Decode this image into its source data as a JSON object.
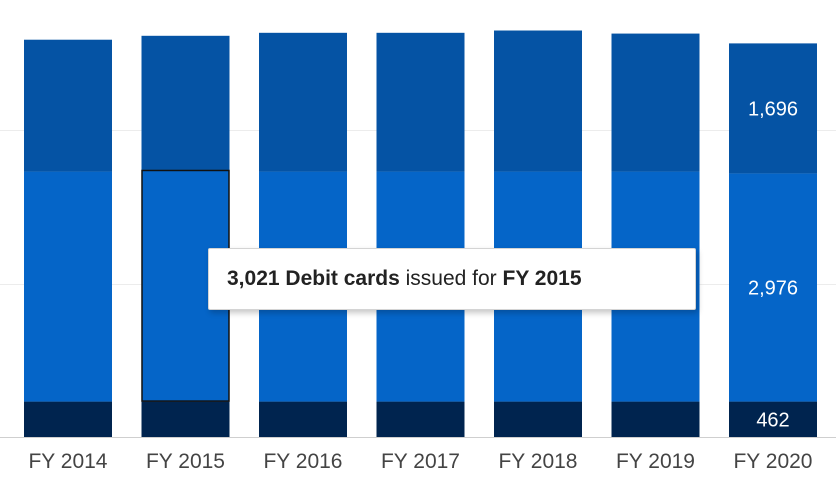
{
  "chart_data": {
    "type": "bar",
    "stacked": true,
    "categories": [
      "FY 2014",
      "FY 2015",
      "FY 2016",
      "FY 2017",
      "FY 2018",
      "FY 2019",
      "FY 2020"
    ],
    "series": [
      {
        "values": [
          462,
          462,
          462,
          462,
          462,
          462,
          462
        ],
        "color": "#00244f"
      },
      {
        "values": [
          3000,
          3021,
          3000,
          3000,
          3000,
          3000,
          2976
        ],
        "color": "#0565c8"
      },
      {
        "values": [
          1720,
          1750,
          1810,
          1810,
          1840,
          1800,
          1696
        ],
        "color": "#0553a4"
      }
    ],
    "data_labels": [
      {
        "category": "FY 2020",
        "series_index": 0,
        "text": "462"
      },
      {
        "category": "FY 2020",
        "series_index": 1,
        "text": "2,976"
      },
      {
        "category": "FY 2020",
        "series_index": 2,
        "text": "1,696"
      }
    ],
    "ylim": [
      0,
      5700
    ],
    "grid": true,
    "highlight": {
      "category": "FY 2015",
      "series_index": 1
    },
    "tooltip": {
      "value": "3,021",
      "series": "Debit cards",
      "connector": "issued for",
      "category": "FY 2015"
    }
  }
}
